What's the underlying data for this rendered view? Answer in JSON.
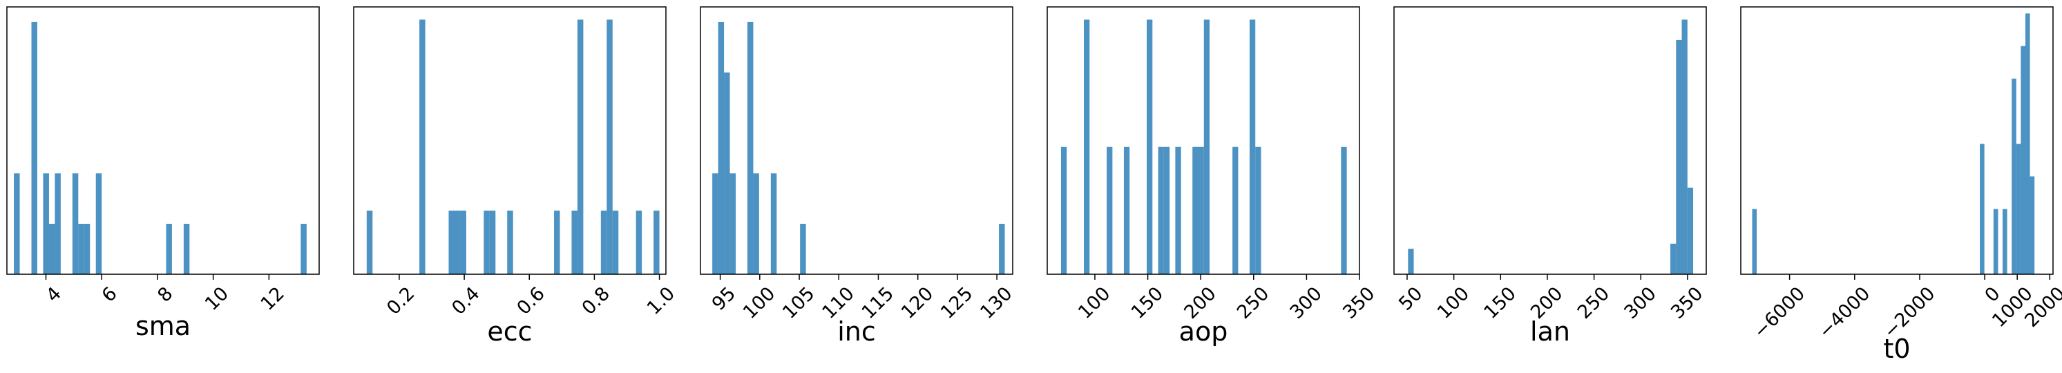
{
  "chart_data": [
    {
      "type": "bar",
      "xlabel": "sma",
      "xlim": [
        2.6,
        13.8
      ],
      "ticks": [
        {
          "value": 4,
          "label": "4"
        },
        {
          "value": 6,
          "label": "6"
        },
        {
          "value": 8,
          "label": "8"
        },
        {
          "value": 10,
          "label": "10"
        },
        {
          "value": 12,
          "label": "12"
        }
      ],
      "ylim": [
        0,
        5.3
      ],
      "bin_edges": [
        2.85,
        3.06,
        3.27,
        3.48,
        3.69,
        3.9,
        4.11,
        4.32,
        4.53,
        4.74,
        4.95,
        5.16,
        5.37,
        5.58,
        5.79,
        6.0,
        6.21,
        6.42,
        6.63,
        6.84,
        7.05,
        7.26,
        7.47,
        7.68,
        7.89,
        8.1,
        8.31,
        8.52,
        8.73,
        8.94,
        9.15,
        9.36,
        9.57,
        9.78,
        9.99,
        10.2,
        10.41,
        10.62,
        10.83,
        11.04,
        11.25,
        11.46,
        11.67,
        11.88,
        12.09,
        12.3,
        12.51,
        12.72,
        12.93,
        13.14,
        13.35
      ],
      "counts": [
        2,
        0,
        0,
        5,
        0,
        2,
        1,
        2,
        0,
        0,
        2,
        1,
        1,
        0,
        2,
        0,
        0,
        0,
        0,
        0,
        0,
        0,
        0,
        0,
        0,
        0,
        1,
        0,
        0,
        1,
        0,
        0,
        0,
        0,
        0,
        0,
        0,
        0,
        0,
        0,
        0,
        0,
        0,
        0,
        0,
        0,
        0,
        0,
        0,
        1
      ]
    },
    {
      "type": "bar",
      "xlabel": "ecc",
      "xlim": [
        0.06,
        1.02
      ],
      "ticks": [
        {
          "value": 0.2,
          "label": "0.2"
        },
        {
          "value": 0.4,
          "label": "0.4"
        },
        {
          "value": 0.6,
          "label": "0.6"
        },
        {
          "value": 0.8,
          "label": "0.8"
        },
        {
          "value": 1.0,
          "label": "1.0"
        }
      ],
      "ylim": [
        0,
        4.2
      ],
      "bin_edges": [
        0.1,
        0.118,
        0.136,
        0.154,
        0.172,
        0.19,
        0.208,
        0.226,
        0.244,
        0.262,
        0.28,
        0.298,
        0.316,
        0.334,
        0.352,
        0.37,
        0.388,
        0.406,
        0.424,
        0.442,
        0.46,
        0.478,
        0.496,
        0.514,
        0.532,
        0.55,
        0.568,
        0.586,
        0.604,
        0.622,
        0.64,
        0.658,
        0.676,
        0.694,
        0.712,
        0.73,
        0.748,
        0.766,
        0.784,
        0.802,
        0.82,
        0.838,
        0.856,
        0.874,
        0.892,
        0.91,
        0.928,
        0.946,
        0.964,
        0.982,
        1.0
      ],
      "counts": [
        1,
        0,
        0,
        0,
        0,
        0,
        0,
        0,
        0,
        4,
        0,
        0,
        0,
        0,
        1,
        1,
        1,
        0,
        0,
        0,
        1,
        1,
        0,
        0,
        1,
        0,
        0,
        0,
        0,
        0,
        0,
        0,
        1,
        0,
        0,
        1,
        4,
        0,
        0,
        0,
        1,
        4,
        1,
        0,
        0,
        0,
        1,
        0,
        0,
        1
      ]
    },
    {
      "type": "bar",
      "xlabel": "inc",
      "xlim": [
        92.5,
        132.0
      ],
      "ticks": [
        {
          "value": 95,
          "label": "95"
        },
        {
          "value": 100,
          "label": "100"
        },
        {
          "value": 105,
          "label": "105"
        },
        {
          "value": 110,
          "label": "110"
        },
        {
          "value": 115,
          "label": "115"
        },
        {
          "value": 120,
          "label": "120"
        },
        {
          "value": 125,
          "label": "125"
        },
        {
          "value": 130,
          "label": "130"
        }
      ],
      "ylim": [
        0,
        5.3
      ],
      "bin_edges": [
        94.0,
        94.74,
        95.48,
        96.22,
        96.96,
        97.7,
        98.44,
        99.18,
        99.92,
        100.66,
        101.4,
        102.14,
        102.88,
        103.62,
        104.36,
        105.1,
        105.84,
        106.58,
        107.32,
        108.06,
        108.8,
        109.54,
        110.28,
        111.02,
        111.76,
        112.5,
        113.24,
        113.98,
        114.72,
        115.46,
        116.2,
        116.94,
        117.68,
        118.42,
        119.16,
        119.9,
        120.64,
        121.38,
        122.12,
        122.86,
        123.6,
        124.34,
        125.08,
        125.82,
        126.56,
        127.3,
        128.04,
        128.78,
        129.52,
        130.26,
        131.0
      ],
      "counts": [
        2,
        5,
        4,
        2,
        0,
        0,
        5,
        2,
        0,
        0,
        2,
        0,
        0,
        0,
        0,
        1,
        0,
        0,
        0,
        0,
        0,
        0,
        0,
        0,
        0,
        0,
        0,
        0,
        0,
        0,
        0,
        0,
        0,
        0,
        0,
        0,
        0,
        0,
        0,
        0,
        0,
        0,
        0,
        0,
        0,
        0,
        0,
        0,
        0,
        1
      ]
    },
    {
      "type": "bar",
      "xlabel": "aop",
      "xlim": [
        55,
        350
      ],
      "ticks": [
        {
          "value": 100,
          "label": "100"
        },
        {
          "value": 150,
          "label": "150"
        },
        {
          "value": 200,
          "label": "200"
        },
        {
          "value": 250,
          "label": "250"
        },
        {
          "value": 300,
          "label": "300"
        },
        {
          "value": 350,
          "label": "350"
        }
      ],
      "ylim": [
        0,
        4.2
      ],
      "bin_edges": [
        68.0,
        73.4,
        78.8,
        84.2,
        89.6,
        95.0,
        100.4,
        105.8,
        111.2,
        116.6,
        122.0,
        127.4,
        132.8,
        138.2,
        143.6,
        149.0,
        154.4,
        159.8,
        165.2,
        170.6,
        176.0,
        181.4,
        186.8,
        192.2,
        197.6,
        203.0,
        208.4,
        213.8,
        219.2,
        224.6,
        230.0,
        235.4,
        240.8,
        246.2,
        251.6,
        257.0,
        262.4,
        267.8,
        273.2,
        278.6,
        284.0,
        289.4,
        294.8,
        300.2,
        305.6,
        311.0,
        316.4,
        321.8,
        327.2,
        332.6,
        338.0
      ],
      "counts": [
        2,
        0,
        0,
        0,
        4,
        0,
        0,
        0,
        2,
        0,
        0,
        2,
        0,
        0,
        0,
        4,
        0,
        2,
        2,
        0,
        2,
        0,
        0,
        2,
        2,
        4,
        0,
        0,
        0,
        0,
        2,
        0,
        0,
        4,
        2,
        0,
        0,
        0,
        0,
        0,
        0,
        0,
        0,
        0,
        0,
        0,
        0,
        0,
        0,
        2
      ]
    },
    {
      "type": "bar",
      "xlabel": "lan",
      "xlim": [
        36,
        370
      ],
      "ticks": [
        {
          "value": 50,
          "label": "50"
        },
        {
          "value": 100,
          "label": "100"
        },
        {
          "value": 150,
          "label": "150"
        },
        {
          "value": 200,
          "label": "200"
        },
        {
          "value": 250,
          "label": "250"
        },
        {
          "value": 300,
          "label": "300"
        },
        {
          "value": 350,
          "label": "350"
        }
      ],
      "ylim": [
        0,
        10.5
      ],
      "bin_edges": [
        51.0,
        57.1,
        63.2,
        69.3,
        75.4,
        81.5,
        87.6,
        93.7,
        99.8,
        105.9,
        112.0,
        118.1,
        124.2,
        130.3,
        136.4,
        142.5,
        148.6,
        154.7,
        160.8,
        166.9,
        173.0,
        179.1,
        185.2,
        191.3,
        197.4,
        203.5,
        209.6,
        215.7,
        221.8,
        227.9,
        234.0,
        240.1,
        246.2,
        252.3,
        258.4,
        264.5,
        270.6,
        276.7,
        282.8,
        288.9,
        295.0,
        301.1,
        307.2,
        313.3,
        319.4,
        325.5,
        331.6,
        337.7,
        343.8,
        349.9,
        356.0
      ],
      "counts": [
        1,
        0,
        0,
        0,
        0,
        0,
        0,
        0,
        0,
        0,
        0,
        0,
        0,
        0,
        0,
        0,
        0,
        0,
        0,
        0,
        0,
        0,
        0,
        0,
        0,
        0,
        0,
        0,
        0,
        0,
        0,
        0,
        0,
        0,
        0,
        0,
        0,
        0,
        0,
        0,
        0,
        0,
        0,
        0,
        0,
        0,
        1.2,
        9.2,
        10.0,
        3.4
      ]
    },
    {
      "type": "bar",
      "xlabel": "t0",
      "xlim": [
        -7500,
        2100
      ],
      "ticks": [
        {
          "value": -6000,
          "label": "−6000"
        },
        {
          "value": -4000,
          "label": "−4000"
        },
        {
          "value": -2000,
          "label": "−2000"
        },
        {
          "value": 0,
          "label": "0"
        },
        {
          "value": 1000,
          "label": "1000"
        },
        {
          "value": 2000,
          "label": "2000"
        }
      ],
      "ylim": [
        0,
        8.2
      ],
      "bin_edges": [
        -7150,
        -7010,
        -6870,
        -6730,
        -6590,
        -6450,
        -6310,
        -6170,
        -6030,
        -5890,
        -5750,
        -5610,
        -5470,
        -5330,
        -5190,
        -5050,
        -4910,
        -4770,
        -4630,
        -4490,
        -4350,
        -4210,
        -4070,
        -3930,
        -3790,
        -3650,
        -3510,
        -3370,
        -3230,
        -3090,
        -2950,
        -2810,
        -2670,
        -2530,
        -2390,
        -2250,
        -2110,
        -1970,
        -1830,
        -1690,
        -1550,
        -1410,
        -1270,
        -1130,
        -990,
        -850,
        -710,
        -570,
        -430,
        -290,
        -150,
        -10,
        130,
        270,
        410,
        550,
        690,
        830,
        970,
        1110,
        1250,
        1390,
        1530,
        1670,
        1810
      ],
      "counts": [
        2,
        0,
        0,
        0,
        0,
        0,
        0,
        0,
        0,
        0,
        0,
        0,
        0,
        0,
        0,
        0,
        0,
        0,
        0,
        0,
        0,
        0,
        0,
        0,
        0,
        0,
        0,
        0,
        0,
        0,
        0,
        0,
        0,
        0,
        0,
        0,
        0,
        0,
        0,
        0,
        0,
        0,
        0,
        0,
        0,
        0,
        0,
        0,
        0,
        0,
        4,
        0,
        0,
        2,
        0,
        2,
        0,
        6,
        4,
        7,
        8,
        3,
        0,
        0
      ]
    }
  ]
}
